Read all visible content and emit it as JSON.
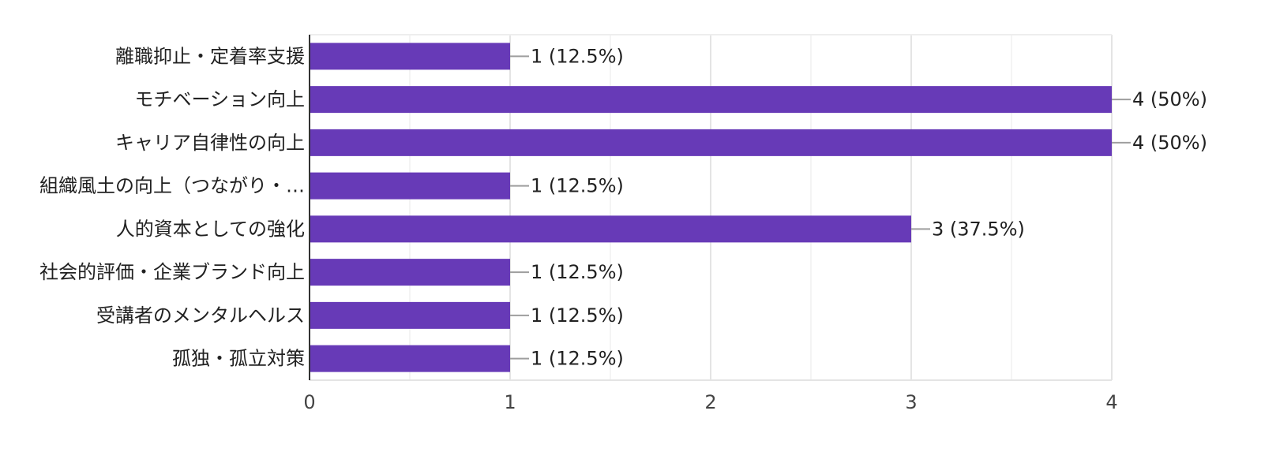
{
  "chart_data": {
    "type": "bar",
    "orientation": "horizontal",
    "title": "",
    "xlabel": "",
    "ylabel": "",
    "categories": [
      "離職抑止・定着率支援",
      "モチベーション向上",
      "キャリア自律性の向上",
      "組織風土の向上（つながり・…",
      "人的資本としての強化",
      "社会的評価・企業ブランド向上",
      "受講者のメンタルヘルス",
      "孤独・孤立対策"
    ],
    "values": [
      1,
      4,
      4,
      1,
      3,
      1,
      1,
      1
    ],
    "data_labels": [
      "1 (12.5%)",
      "4 (50%)",
      "4 (50%)",
      "1 (12.5%)",
      "3 (37.5%)",
      "1 (12.5%)",
      "1 (12.5%)",
      "1 (12.5%)"
    ],
    "xlim": [
      0,
      4
    ],
    "xticks": [
      "0",
      "1",
      "2",
      "3",
      "4"
    ],
    "grid": true,
    "legend": "none",
    "bar_color": "#673ab7"
  }
}
